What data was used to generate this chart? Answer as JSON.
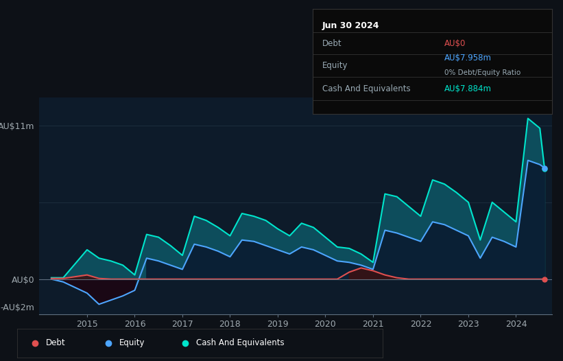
{
  "bg_color": "#0d1117",
  "plot_bg_color": "#0d1b2a",
  "grid_color": "#1e3040",
  "ylim": [
    -2.5,
    13
  ],
  "debt_color": "#e05050",
  "equity_color": "#4da6ff",
  "cash_color": "#00e5cc",
  "cash_fill_color": "#0d4d5c",
  "time_points": [
    2014.25,
    2014.5,
    2015.0,
    2015.25,
    2015.5,
    2015.75,
    2016.0,
    2016.25,
    2016.5,
    2016.75,
    2017.0,
    2017.25,
    2017.5,
    2017.75,
    2018.0,
    2018.25,
    2018.5,
    2018.75,
    2019.0,
    2019.25,
    2019.5,
    2019.75,
    2020.0,
    2020.25,
    2020.5,
    2020.75,
    2021.0,
    2021.25,
    2021.5,
    2021.75,
    2022.0,
    2022.25,
    2022.5,
    2022.75,
    2023.0,
    2023.25,
    2023.5,
    2023.75,
    2024.0,
    2024.25,
    2024.5,
    2024.6
  ],
  "cash_values": [
    0.1,
    0.1,
    2.1,
    1.5,
    1.3,
    1.0,
    0.3,
    3.2,
    3.0,
    2.4,
    1.7,
    4.5,
    4.2,
    3.7,
    3.1,
    4.7,
    4.5,
    4.2,
    3.6,
    3.1,
    4.0,
    3.7,
    3.0,
    2.3,
    2.2,
    1.8,
    1.2,
    6.1,
    5.9,
    5.2,
    4.5,
    7.1,
    6.8,
    6.2,
    5.5,
    2.8,
    5.5,
    4.8,
    4.1,
    11.5,
    10.8,
    7.884
  ],
  "equity_values": [
    0.0,
    -0.2,
    -1.0,
    -1.8,
    -1.5,
    -1.2,
    -0.8,
    1.5,
    1.3,
    1.0,
    0.7,
    2.5,
    2.3,
    2.0,
    1.6,
    2.8,
    2.7,
    2.4,
    2.1,
    1.8,
    2.3,
    2.1,
    1.7,
    1.3,
    1.2,
    1.0,
    0.7,
    3.5,
    3.3,
    3.0,
    2.7,
    4.1,
    3.9,
    3.5,
    3.1,
    1.5,
    3.0,
    2.7,
    2.3,
    8.5,
    8.2,
    7.958
  ],
  "debt_values": [
    0.05,
    0.05,
    0.3,
    0.05,
    0.0,
    0.0,
    0.0,
    0.0,
    0.0,
    0.0,
    0.0,
    0.0,
    0.0,
    0.0,
    0.0,
    0.0,
    0.0,
    0.0,
    0.0,
    0.0,
    0.0,
    0.0,
    0.0,
    0.0,
    0.5,
    0.8,
    0.6,
    0.3,
    0.1,
    0.0,
    0.0,
    0.0,
    0.0,
    0.0,
    0.0,
    0.0,
    0.0,
    0.0,
    0.0,
    0.0,
    0.0,
    0.0
  ],
  "tooltip": {
    "title": "Jun 30 2024",
    "rows": [
      {
        "label": "Debt",
        "value": "AU$0",
        "value_color": "#e05050",
        "sub": null
      },
      {
        "label": "Equity",
        "value": "AU$7.958m",
        "value_color": "#4da6ff",
        "sub": "0% Debt/Equity Ratio"
      },
      {
        "label": "Cash And Equivalents",
        "value": "AU$7.884m",
        "value_color": "#00e5cc",
        "sub": null
      }
    ]
  },
  "legend_items": [
    {
      "label": "Debt",
      "color": "#e05050"
    },
    {
      "label": "Equity",
      "color": "#4da6ff"
    },
    {
      "label": "Cash And Equivalents",
      "color": "#00e5cc"
    }
  ]
}
